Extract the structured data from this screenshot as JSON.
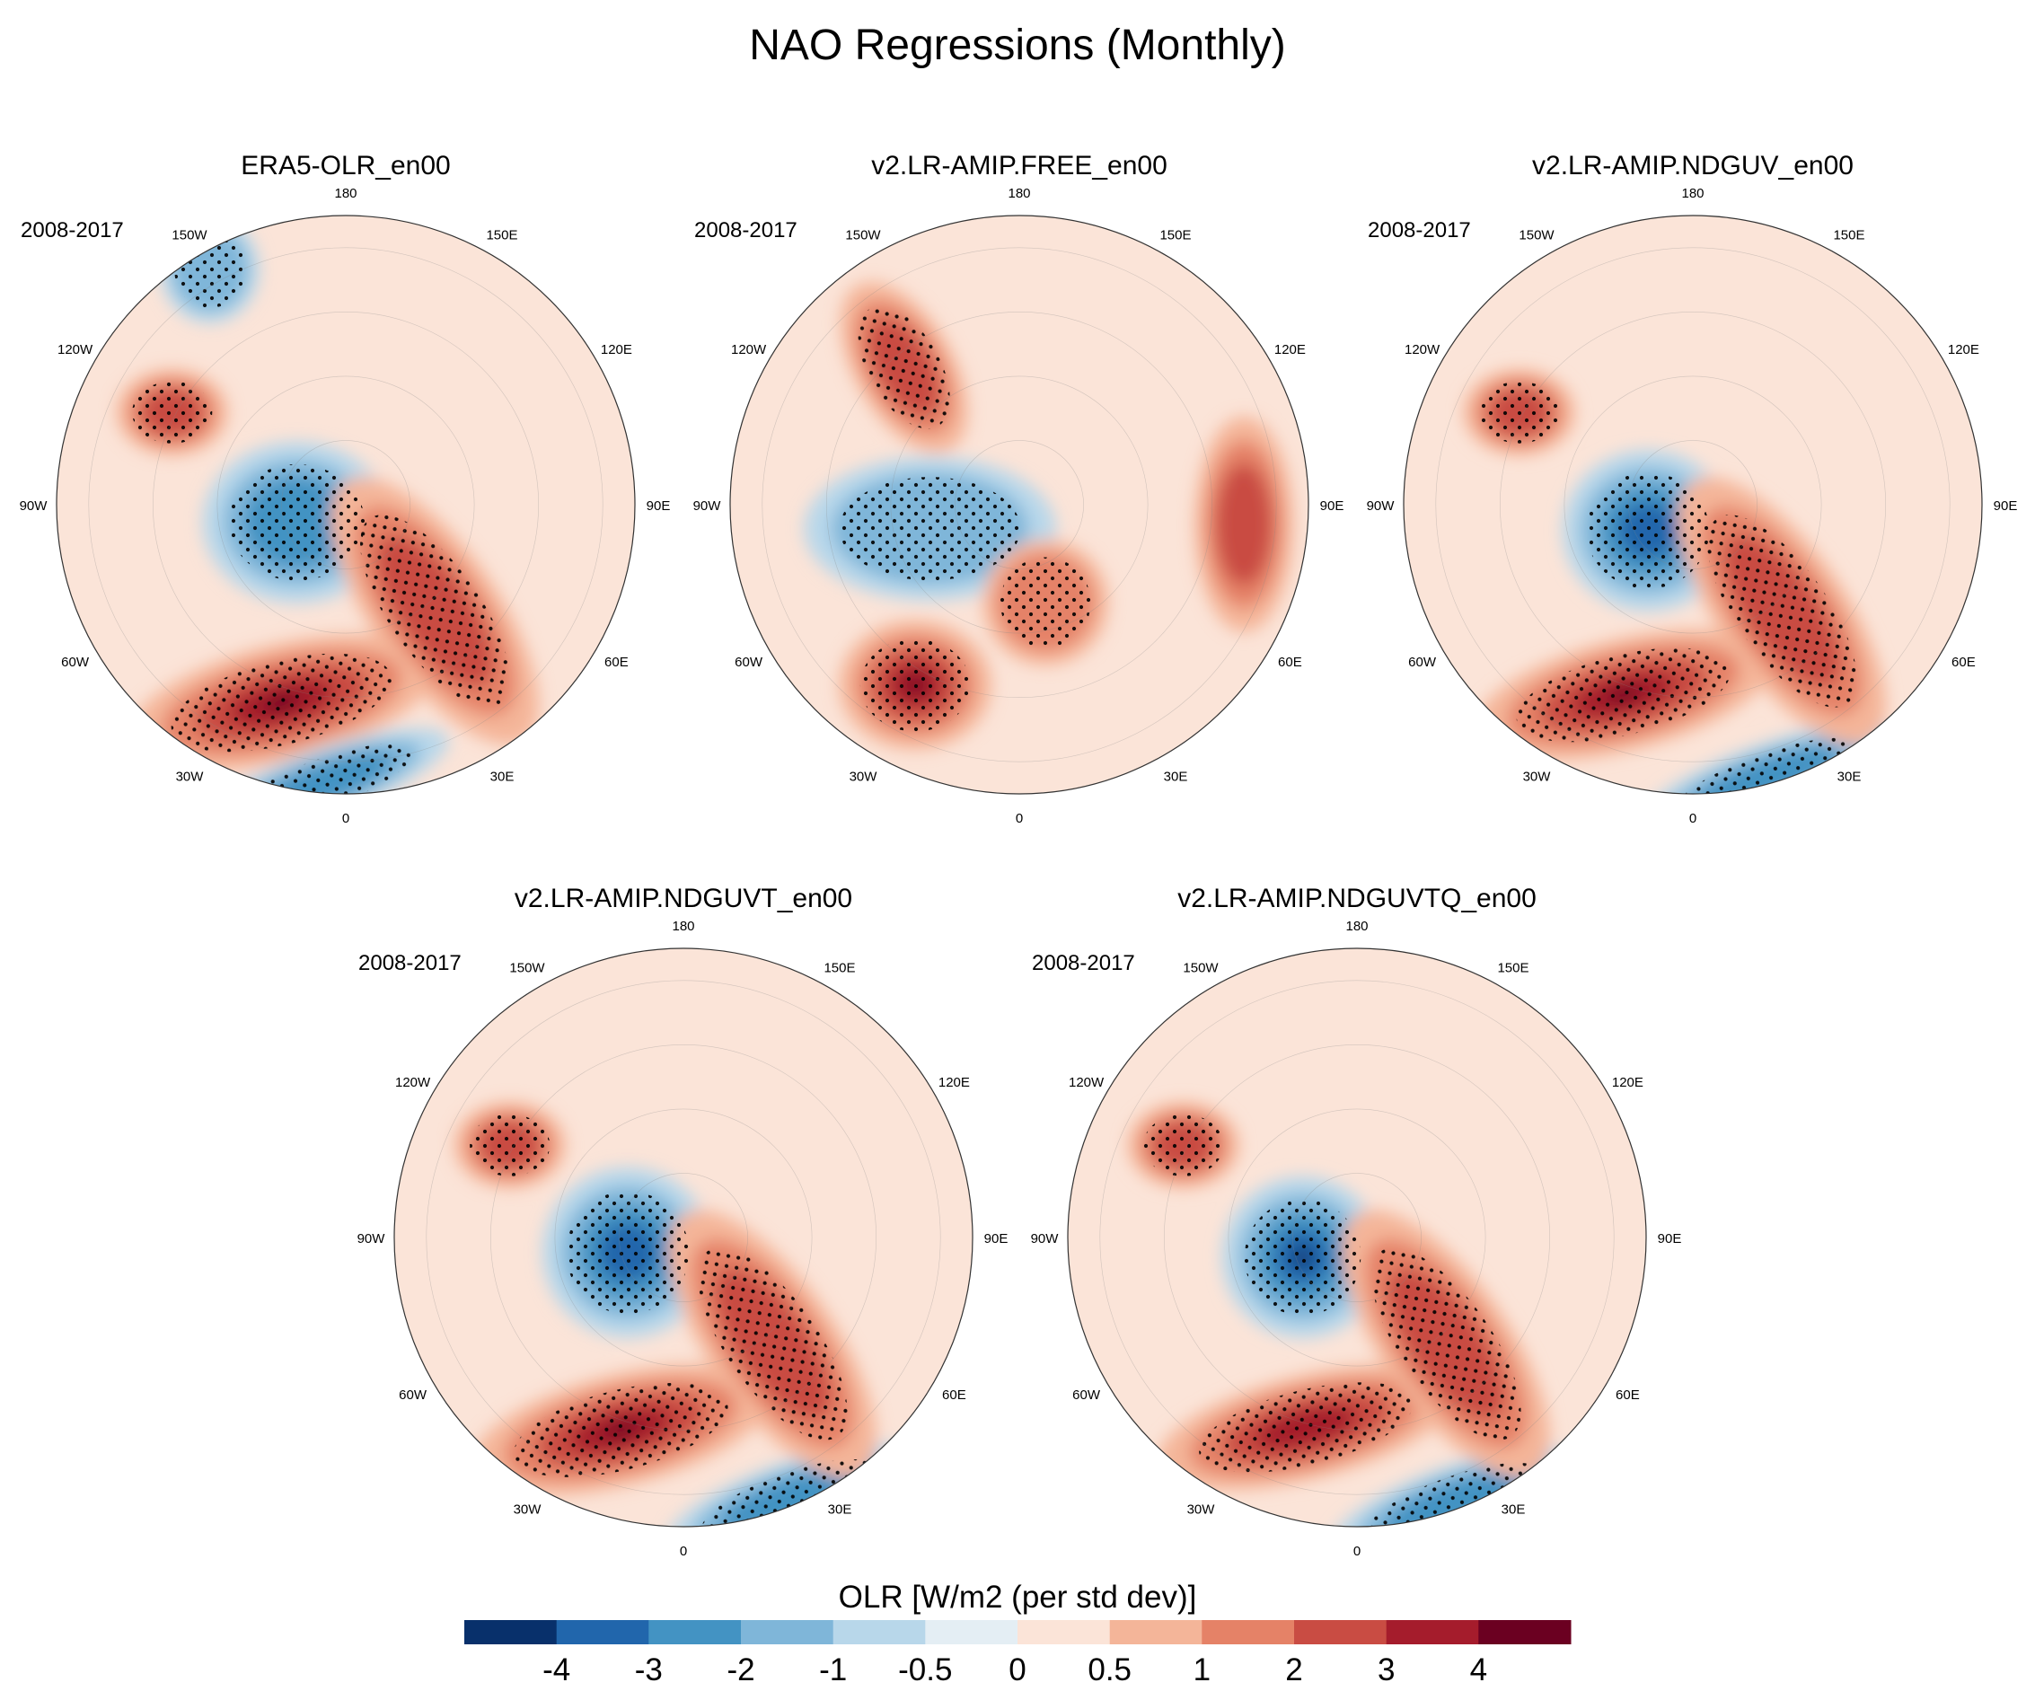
{
  "chart_data": {
    "type": "polar-stereographic-map-panels",
    "title": "NAO Regressions (Monthly)",
    "field": "OLR regressed on NAO index",
    "period": "2008-2017",
    "longitude_labels": [
      "180",
      "150E",
      "120E",
      "90E",
      "60E",
      "30E",
      "0",
      "30W",
      "60W",
      "90W",
      "120W",
      "150W"
    ],
    "panels": [
      {
        "title": "ERA5-OLR_en00",
        "period": "2008-2017",
        "features": [
          {
            "region": "North Atlantic (~45N, 30W-0)",
            "value": 4,
            "sign": "positive",
            "stippled": true
          },
          {
            "region": "Arctic / Baffin-Greenland",
            "value": -2,
            "sign": "negative",
            "stippled": true
          },
          {
            "region": "Subtropical Atlantic / Mediterranean-Africa",
            "value": -2,
            "sign": "negative",
            "stippled": true
          },
          {
            "region": "Eurasia (Russia-Siberia arc)",
            "value": 2,
            "sign": "positive",
            "stippled": true
          },
          {
            "region": "North Pacific (~150W)",
            "value": -1,
            "sign": "negative",
            "stippled": true
          },
          {
            "region": "Western North America (~120W)",
            "value": 2,
            "sign": "positive",
            "stippled": true
          }
        ]
      },
      {
        "title": "v2.LR-AMIP.FREE_en00",
        "period": "2008-2017",
        "features": [
          {
            "region": "North Atlantic (~45N, 30W)",
            "value": 4,
            "sign": "positive",
            "stippled": true
          },
          {
            "region": "Arctic / Canada",
            "value": -1,
            "sign": "negative",
            "stippled": true
          },
          {
            "region": "Eastern Pacific (~150W-120W)",
            "value": 2,
            "sign": "positive",
            "stippled": true
          },
          {
            "region": "Europe / Scandinavia",
            "value": 1,
            "sign": "positive",
            "stippled": true
          },
          {
            "region": "Central Asia (~90E)",
            "value": 2,
            "sign": "positive",
            "stippled": false
          }
        ]
      },
      {
        "title": "v2.LR-AMIP.NDGUV_en00",
        "period": "2008-2017",
        "features": [
          {
            "region": "North Atlantic (~45N, 30W-0)",
            "value": 4,
            "sign": "positive",
            "stippled": true
          },
          {
            "region": "Arctic / Baffin-Greenland",
            "value": -3,
            "sign": "negative",
            "stippled": true
          },
          {
            "region": "Subtropical Atlantic / Africa",
            "value": -2,
            "sign": "negative",
            "stippled": true
          },
          {
            "region": "Eurasia (Russia-Siberia arc)",
            "value": 2,
            "sign": "positive",
            "stippled": true
          },
          {
            "region": "Western North America (~120W)",
            "value": 2,
            "sign": "positive",
            "stippled": true
          }
        ]
      },
      {
        "title": "v2.LR-AMIP.NDGUVT_en00",
        "period": "2008-2017",
        "features": [
          {
            "region": "North Atlantic (~45N, 30W-0)",
            "value": 4,
            "sign": "positive",
            "stippled": true
          },
          {
            "region": "Arctic / Baffin-Greenland",
            "value": -3,
            "sign": "negative",
            "stippled": true
          },
          {
            "region": "Subtropical Atlantic / Africa",
            "value": -2,
            "sign": "negative",
            "stippled": true
          },
          {
            "region": "Eurasia (Russia-Siberia arc)",
            "value": 2,
            "sign": "positive",
            "stippled": true
          },
          {
            "region": "Western North America (~120W)",
            "value": 2,
            "sign": "positive",
            "stippled": true
          }
        ]
      },
      {
        "title": "v2.LR-AMIP.NDGUVTQ_en00",
        "period": "2008-2017",
        "features": [
          {
            "region": "North Atlantic (~45N, 30W-0)",
            "value": 3,
            "sign": "positive",
            "stippled": true
          },
          {
            "region": "Arctic / Baffin-Greenland",
            "value": -4,
            "sign": "negative",
            "stippled": true
          },
          {
            "region": "Subtropical Atlantic / Africa",
            "value": -2,
            "sign": "negative",
            "stippled": true
          },
          {
            "region": "Eurasia (Russia-Siberia arc)",
            "value": 2,
            "sign": "positive",
            "stippled": true
          },
          {
            "region": "Western North America (~120W)",
            "value": 2,
            "sign": "positive",
            "stippled": true
          }
        ]
      }
    ],
    "colorbar": {
      "title": "OLR [W/m2 (per std dev)]",
      "levels": [
        "-4",
        "-3",
        "-2",
        "-1",
        "-0.5",
        "0",
        "0.5",
        "1",
        "2",
        "3",
        "4"
      ],
      "colors": [
        "#08306b",
        "#2166ac",
        "#4393c3",
        "#7fb6d9",
        "#b8d7ea",
        "#e4eef4",
        "#fbe4d8",
        "#f4b599",
        "#e58267",
        "#c94c43",
        "#a51c2c",
        "#6b0021"
      ]
    }
  }
}
